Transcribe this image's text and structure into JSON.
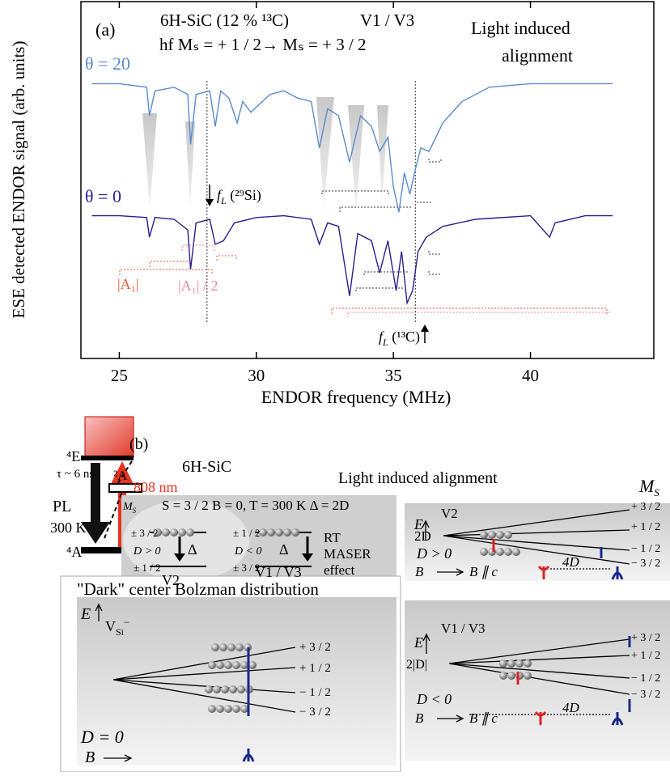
{
  "chart_data": {
    "type": "line",
    "panel_label": "(a)",
    "title": "6H-SiC (12 % ¹³C)",
    "subtitle": "V1 / V3",
    "transition": "hf  Mₛ = + 1 / 2→ Mₛ = + 3 / 2",
    "note": [
      "Light induced",
      "alignment"
    ],
    "markers": {
      "si": {
        "symbol": "f",
        "sub": "L",
        "text": " (²⁹Si)"
      },
      "c": {
        "symbol": "f",
        "sub": "L",
        "text": " (¹³C)"
      }
    },
    "hyperfine": [
      "|A₁|",
      "|A₁| / 2"
    ],
    "x_label": "ENDOR frequency (MHz)",
    "y_label": "ESE detected ENDOR signal (arb. units)",
    "xlim": [
      23.6,
      44.5
    ],
    "ylim": [
      0,
      10
    ],
    "xticks": [
      25,
      30,
      35,
      40
    ],
    "vlines": [
      28.2,
      35.8
    ],
    "series": [
      {
        "name": "θ = 20",
        "color": "#5b8bd0",
        "x": [
          24,
          25,
          26,
          26.1,
          26.3,
          27,
          27.5,
          27.6,
          27.8,
          28.3,
          28.5,
          28.7,
          29,
          29.3,
          29.5,
          29.8,
          30.5,
          31,
          31.5,
          32,
          32.3,
          32.6,
          33,
          33.4,
          33.8,
          34.2,
          34.5,
          34.8,
          35,
          35.2,
          35.4,
          35.6,
          35.8,
          36,
          36.3,
          36.8,
          37.5,
          38.5,
          40,
          42,
          43
        ],
        "values": [
          7.7,
          7.7,
          7.6,
          6.8,
          7.5,
          7.6,
          7.4,
          6.0,
          7.4,
          7.5,
          6.5,
          7.5,
          7.3,
          6.6,
          7.2,
          6.9,
          7.4,
          7.5,
          7.3,
          7.2,
          5.9,
          7.0,
          6.8,
          5.5,
          6.8,
          6.5,
          5.8,
          6.2,
          4.8,
          4.1,
          5.2,
          4.6,
          5.3,
          5.9,
          5.8,
          6.6,
          7.2,
          7.6,
          7.7,
          7.7,
          7.7
        ]
      },
      {
        "name": "θ = 0",
        "color": "#2d1e8e",
        "x": [
          24,
          25,
          26,
          26.1,
          26.3,
          27,
          27.5,
          27.6,
          27.8,
          28.3,
          28.5,
          28.8,
          29.2,
          30,
          31,
          32,
          32.3,
          32.6,
          33,
          33.4,
          33.7,
          34.2,
          34.5,
          34.8,
          35.1,
          35.3,
          35.5,
          35.7,
          35.9,
          36.2,
          36.8,
          38,
          40,
          40.7,
          40.9,
          42,
          43
        ],
        "values": [
          4,
          4,
          3.95,
          3.4,
          3.95,
          3.9,
          3.6,
          2.5,
          3.8,
          3.9,
          3.2,
          3.3,
          3.8,
          3.95,
          4,
          3.9,
          3.2,
          3.8,
          3.7,
          1.75,
          3.5,
          3.3,
          2.4,
          3.3,
          1.9,
          3.0,
          1.55,
          1.9,
          3.0,
          3.4,
          3.7,
          3.9,
          4,
          3.4,
          3.8,
          4,
          4
        ]
      }
    ]
  },
  "panel_b": {
    "label": "(b)",
    "material": "6H-SiC",
    "title": "Light induced alignment",
    "levels": {
      "excited": "⁴E",
      "lifetime": "τ ~ 6 ns",
      "intermediate": "²A",
      "ground": "⁴A",
      "emission": "PL",
      "temperature": "300 K",
      "excitation": "808 nm"
    },
    "center_box": {
      "ms": "M",
      "ms_sub": "S",
      "conditions": "S = 3 / 2  B = 0, T = 300 K  Δ = 2D",
      "v2": {
        "upper": "± 3 / 2",
        "sign": "D > 0",
        "gap": "Δ",
        "lower": "± 1 / 2",
        "name": "V2"
      },
      "v1v3": {
        "upper": "± 1 / 2",
        "sign": "D < 0",
        "gap": "Δ",
        "lower": "± 3 / 2",
        "name": "V1 / V3"
      },
      "maser": [
        "RT",
        "MASER",
        "effect"
      ]
    },
    "v2_box": {
      "ms": "M",
      "ms_sub": "S",
      "energy": "E",
      "name": "V2",
      "splitting": "2D",
      "states": [
        "+ 3 / 2",
        "+ 1 / 2",
        "− 1 / 2",
        "− 3 / 2"
      ],
      "sign": "D > 0",
      "field": "B",
      "orientation": "B ∥ c",
      "spacing": "4D"
    },
    "dark_box": {
      "title": "\"Dark\" center Bolzman distribution",
      "energy": "E",
      "center": "V",
      "center_sub": "Si",
      "center_sup": "−",
      "states": [
        "+ 3 / 2",
        "+ 1 / 2",
        "− 1 / 2",
        "− 3 / 2"
      ],
      "sign": "D = 0",
      "field": "B"
    },
    "v1v3_box": {
      "energy": "E",
      "name": "V1 / V3",
      "splitting": "2|D|",
      "states": [
        "+ 3 / 2",
        "+ 1 / 2",
        "− 1 / 2",
        "− 3 / 2"
      ],
      "sign": "D < 0",
      "field": "B",
      "orientation": "B ∥ c",
      "spacing": "4D"
    }
  }
}
